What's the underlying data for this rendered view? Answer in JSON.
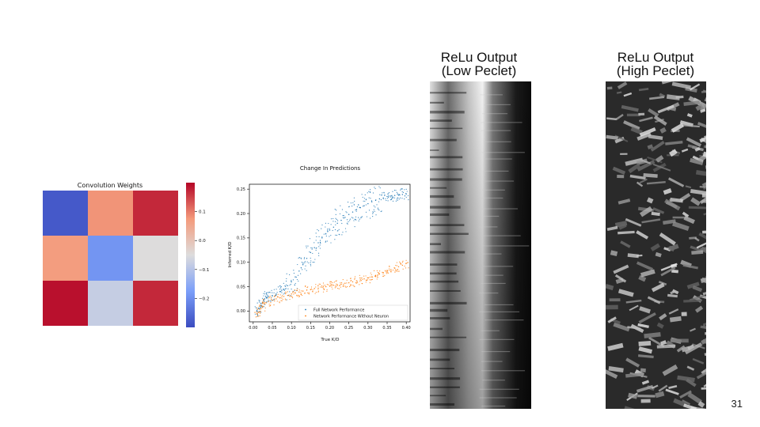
{
  "slide": {
    "number": "31"
  },
  "panels": {
    "relu_low_title_1": "ReLu Output",
    "relu_low_title_2": "(Low Peclet)",
    "relu_high_title_1": "ReLu Output",
    "relu_high_title_2": "(High Peclet)"
  },
  "chart_data": [
    {
      "type": "heatmap",
      "title": "Convolution Weights",
      "colormap": "coolwarm",
      "matrix": [
        [
          -0.28,
          0.08,
          0.17
        ],
        [
          0.07,
          -0.19,
          -0.05
        ],
        [
          0.19,
          -0.08,
          0.17
        ]
      ],
      "colorbar": {
        "range": [
          -0.3,
          0.2
        ],
        "ticks": [
          0.1,
          0.0,
          -0.1,
          -0.2
        ],
        "tick_labels": [
          "0.1",
          "0.0",
          "−0.1",
          "−0.2"
        ]
      }
    },
    {
      "type": "scatter",
      "title": "Change In Predictions",
      "xlabel": "True K/D",
      "ylabel": "Inferred K/D",
      "xlim": [
        -0.01,
        0.41
      ],
      "ylim": [
        -0.022,
        0.26
      ],
      "xticks": [
        0.0,
        0.05,
        0.1,
        0.15,
        0.2,
        0.25,
        0.3,
        0.35,
        0.4
      ],
      "xtick_labels": [
        "0.00",
        "0.05",
        "0.10",
        "0.15",
        "0.20",
        "0.25",
        "0.30",
        "0.35",
        "0.40"
      ],
      "yticks": [
        0.0,
        0.05,
        0.1,
        0.15,
        0.2,
        0.25
      ],
      "ytick_labels": [
        "0.00",
        "0.05",
        "0.10",
        "0.15",
        "0.20",
        "0.25"
      ],
      "legend_position": "lower right",
      "series": [
        {
          "name": "Full Network Performance",
          "color": "#1f77b4",
          "points": [
            [
              0.01,
              0.0
            ],
            [
              0.015,
              0.005
            ],
            [
              0.02,
              0.012
            ],
            [
              0.025,
              0.018
            ],
            [
              0.03,
              0.025
            ],
            [
              0.035,
              0.028
            ],
            [
              0.04,
              0.03
            ],
            [
              0.05,
              0.032
            ],
            [
              0.06,
              0.035
            ],
            [
              0.07,
              0.04
            ],
            [
              0.08,
              0.045
            ],
            [
              0.09,
              0.052
            ],
            [
              0.1,
              0.06
            ],
            [
              0.11,
              0.07
            ],
            [
              0.12,
              0.082
            ],
            [
              0.13,
              0.095
            ],
            [
              0.14,
              0.108
            ],
            [
              0.15,
              0.12
            ],
            [
              0.16,
              0.13
            ],
            [
              0.17,
              0.14
            ],
            [
              0.18,
              0.15
            ],
            [
              0.19,
              0.158
            ],
            [
              0.2,
              0.166
            ],
            [
              0.21,
              0.172
            ],
            [
              0.22,
              0.18
            ],
            [
              0.23,
              0.186
            ],
            [
              0.24,
              0.192
            ],
            [
              0.25,
              0.198
            ],
            [
              0.26,
              0.203
            ],
            [
              0.27,
              0.208
            ],
            [
              0.28,
              0.212
            ],
            [
              0.29,
              0.216
            ],
            [
              0.3,
              0.22
            ],
            [
              0.31,
              0.224
            ],
            [
              0.32,
              0.227
            ],
            [
              0.33,
              0.23
            ],
            [
              0.34,
              0.232
            ],
            [
              0.35,
              0.235
            ],
            [
              0.36,
              0.236
            ],
            [
              0.37,
              0.237
            ],
            [
              0.38,
              0.238
            ],
            [
              0.39,
              0.239
            ],
            [
              0.4,
              0.24
            ]
          ]
        },
        {
          "name": "Network Performance Without Neuron",
          "color": "#ff7f0e",
          "points": [
            [
              0.01,
              -0.005
            ],
            [
              0.015,
              -0.002
            ],
            [
              0.02,
              0.005
            ],
            [
              0.025,
              0.01
            ],
            [
              0.03,
              0.015
            ],
            [
              0.04,
              0.02
            ],
            [
              0.05,
              0.022
            ],
            [
              0.06,
              0.025
            ],
            [
              0.07,
              0.027
            ],
            [
              0.08,
              0.03
            ],
            [
              0.09,
              0.032
            ],
            [
              0.1,
              0.035
            ],
            [
              0.11,
              0.037
            ],
            [
              0.12,
              0.039
            ],
            [
              0.13,
              0.041
            ],
            [
              0.14,
              0.043
            ],
            [
              0.15,
              0.044
            ],
            [
              0.16,
              0.046
            ],
            [
              0.17,
              0.047
            ],
            [
              0.18,
              0.049
            ],
            [
              0.19,
              0.05
            ],
            [
              0.2,
              0.051
            ],
            [
              0.21,
              0.053
            ],
            [
              0.22,
              0.054
            ],
            [
              0.23,
              0.055
            ],
            [
              0.24,
              0.057
            ],
            [
              0.25,
              0.058
            ],
            [
              0.26,
              0.06
            ],
            [
              0.27,
              0.062
            ],
            [
              0.28,
              0.064
            ],
            [
              0.29,
              0.066
            ],
            [
              0.3,
              0.068
            ],
            [
              0.31,
              0.07
            ],
            [
              0.32,
              0.073
            ],
            [
              0.33,
              0.076
            ],
            [
              0.34,
              0.079
            ],
            [
              0.35,
              0.082
            ],
            [
              0.36,
              0.085
            ],
            [
              0.37,
              0.088
            ],
            [
              0.38,
              0.091
            ],
            [
              0.39,
              0.094
            ],
            [
              0.4,
              0.098
            ]
          ]
        }
      ]
    }
  ]
}
